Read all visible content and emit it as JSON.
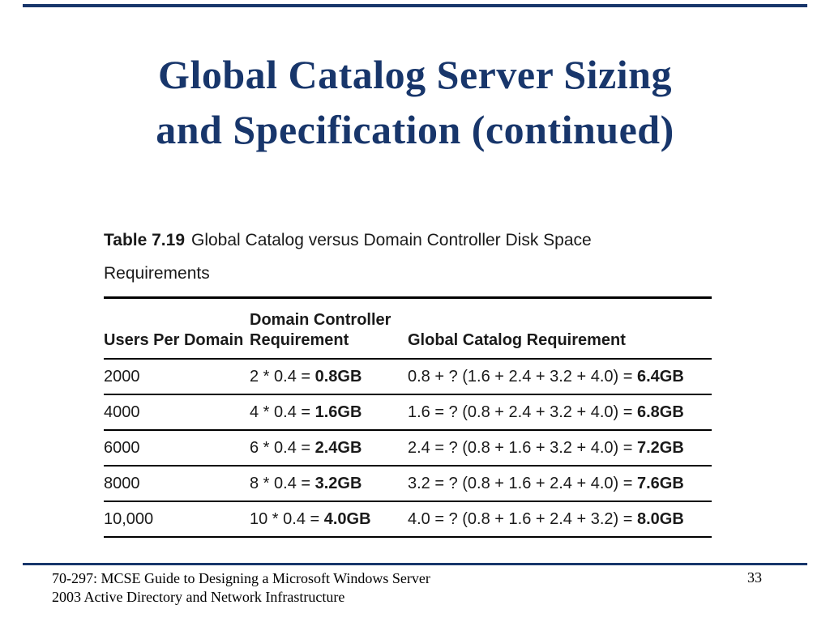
{
  "slide": {
    "title": {
      "line1": "Global Catalog Server Sizing",
      "line2": "and Specification (continued)"
    },
    "footer": {
      "left_line1": "70-297: MCSE Guide to Designing a Microsoft Windows Server",
      "left_line2": "2003 Active Directory and Network Infrastructure",
      "page_number": "33"
    },
    "colors": {
      "accent_navy": "#18366b",
      "table_line_black": "#000000"
    }
  },
  "table": {
    "label": "Table 7.19",
    "caption": "Global Catalog versus Domain Controller Disk Space Requirements",
    "headers": {
      "users": "Users Per Domain",
      "dc": "Domain Controller Requirement",
      "gc": "Global Catalog Requirement"
    },
    "rows": [
      {
        "users": "2000",
        "dc_expr": "2 * 0.4 = ",
        "dc_val": "0.8GB",
        "gc_expr": "0.8 + ? (1.6 + 2.4 + 3.2 + 4.0) = ",
        "gc_val": "6.4GB"
      },
      {
        "users": "4000",
        "dc_expr": "4 * 0.4 = ",
        "dc_val": "1.6GB",
        "gc_expr": "1.6 = ? (0.8 + 2.4 + 3.2 + 4.0) = ",
        "gc_val": "6.8GB"
      },
      {
        "users": "6000",
        "dc_expr": "6 * 0.4 = ",
        "dc_val": "2.4GB",
        "gc_expr": "2.4 = ? (0.8 + 1.6 + 3.2 + 4.0) = ",
        "gc_val": "7.2GB"
      },
      {
        "users": "8000",
        "dc_expr": "8 * 0.4 = ",
        "dc_val": "3.2GB",
        "gc_expr": "3.2 = ? (0.8 + 1.6 + 2.4 + 4.0) = ",
        "gc_val": "7.6GB"
      },
      {
        "users": "10,000",
        "dc_expr": "10 * 0.4 = ",
        "dc_val": "4.0GB",
        "gc_expr": "4.0 = ? (0.8 + 1.6 + 2.4 + 3.2) = ",
        "gc_val": "8.0GB"
      }
    ]
  }
}
